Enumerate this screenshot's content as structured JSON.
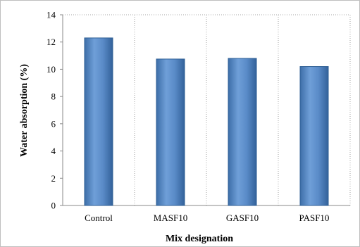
{
  "chart_data": {
    "type": "bar",
    "categories": [
      "Control",
      "MASF10",
      "GASF10",
      "PASF10"
    ],
    "values": [
      12.3,
      10.75,
      10.8,
      10.2
    ],
    "xlabel": "Mix designation",
    "ylabel": "Water absorption (%)",
    "ylim": [
      0,
      14
    ],
    "yticks": [
      "0",
      "2",
      "4",
      "6",
      "8",
      "10",
      "12",
      "14"
    ],
    "grid": "vertical dotted lines between categories",
    "bar_color": "#4f81bd",
    "bar_edge_color": "#2f5f95"
  }
}
